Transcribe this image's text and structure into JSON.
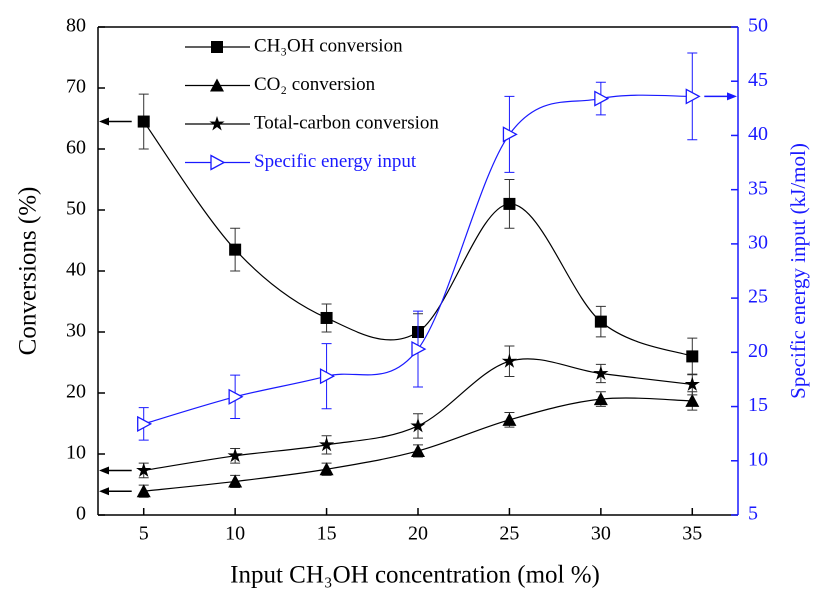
{
  "chart_data": {
    "type": "line",
    "x_label": "Input CH₃OH concentration (mol %)",
    "y_label": "Conversions (%)",
    "y2_label": "Specific energy input (kJ/mol)",
    "x": [
      5,
      10,
      15,
      20,
      25,
      30,
      35
    ],
    "xlim": [
      2.5,
      37.5
    ],
    "xticks": [
      5,
      10,
      15,
      20,
      25,
      30,
      35
    ],
    "ylim": [
      0,
      80
    ],
    "yticks": [
      0,
      10,
      20,
      30,
      40,
      50,
      60,
      70,
      80
    ],
    "y2lim": [
      5,
      50
    ],
    "y2ticks": [
      5,
      10,
      15,
      20,
      25,
      30,
      35,
      40,
      45,
      50
    ],
    "y2_color": "#1a1aff",
    "legend": "upper left",
    "series": [
      {
        "name": "CH₃OH conversion",
        "color": "#000000",
        "marker": "square",
        "values": [
          64.5,
          43.5,
          32.3,
          30,
          51,
          31.7,
          26
        ],
        "errors": [
          4.5,
          3.5,
          2.3,
          3,
          4,
          2.5,
          3
        ]
      },
      {
        "name": "CO₂ conversion",
        "color": "#000000",
        "marker": "triangle",
        "values": [
          3.9,
          5.5,
          7.5,
          10.5,
          15.6,
          19,
          18.7
        ],
        "errors": [
          1,
          1,
          1,
          1,
          1.2,
          1.2,
          1.5
        ]
      },
      {
        "name": "Total-carbon conversion",
        "color": "#000000",
        "marker": "star",
        "values": [
          7.3,
          9.7,
          11.5,
          14.6,
          25.2,
          23.2,
          21.4
        ],
        "errors": [
          1.2,
          1.2,
          1.5,
          2,
          2.5,
          1.5,
          1.7
        ]
      },
      {
        "name": "Specific energy input",
        "color": "#1a1aff",
        "marker": "triangle-right-open",
        "axis": "y2",
        "values": [
          13.4,
          15.9,
          17.8,
          20.3,
          40.1,
          43.4,
          43.6
        ],
        "errors": [
          1.5,
          2,
          3,
          3.5,
          3.5,
          1.5,
          4
        ]
      }
    ]
  }
}
